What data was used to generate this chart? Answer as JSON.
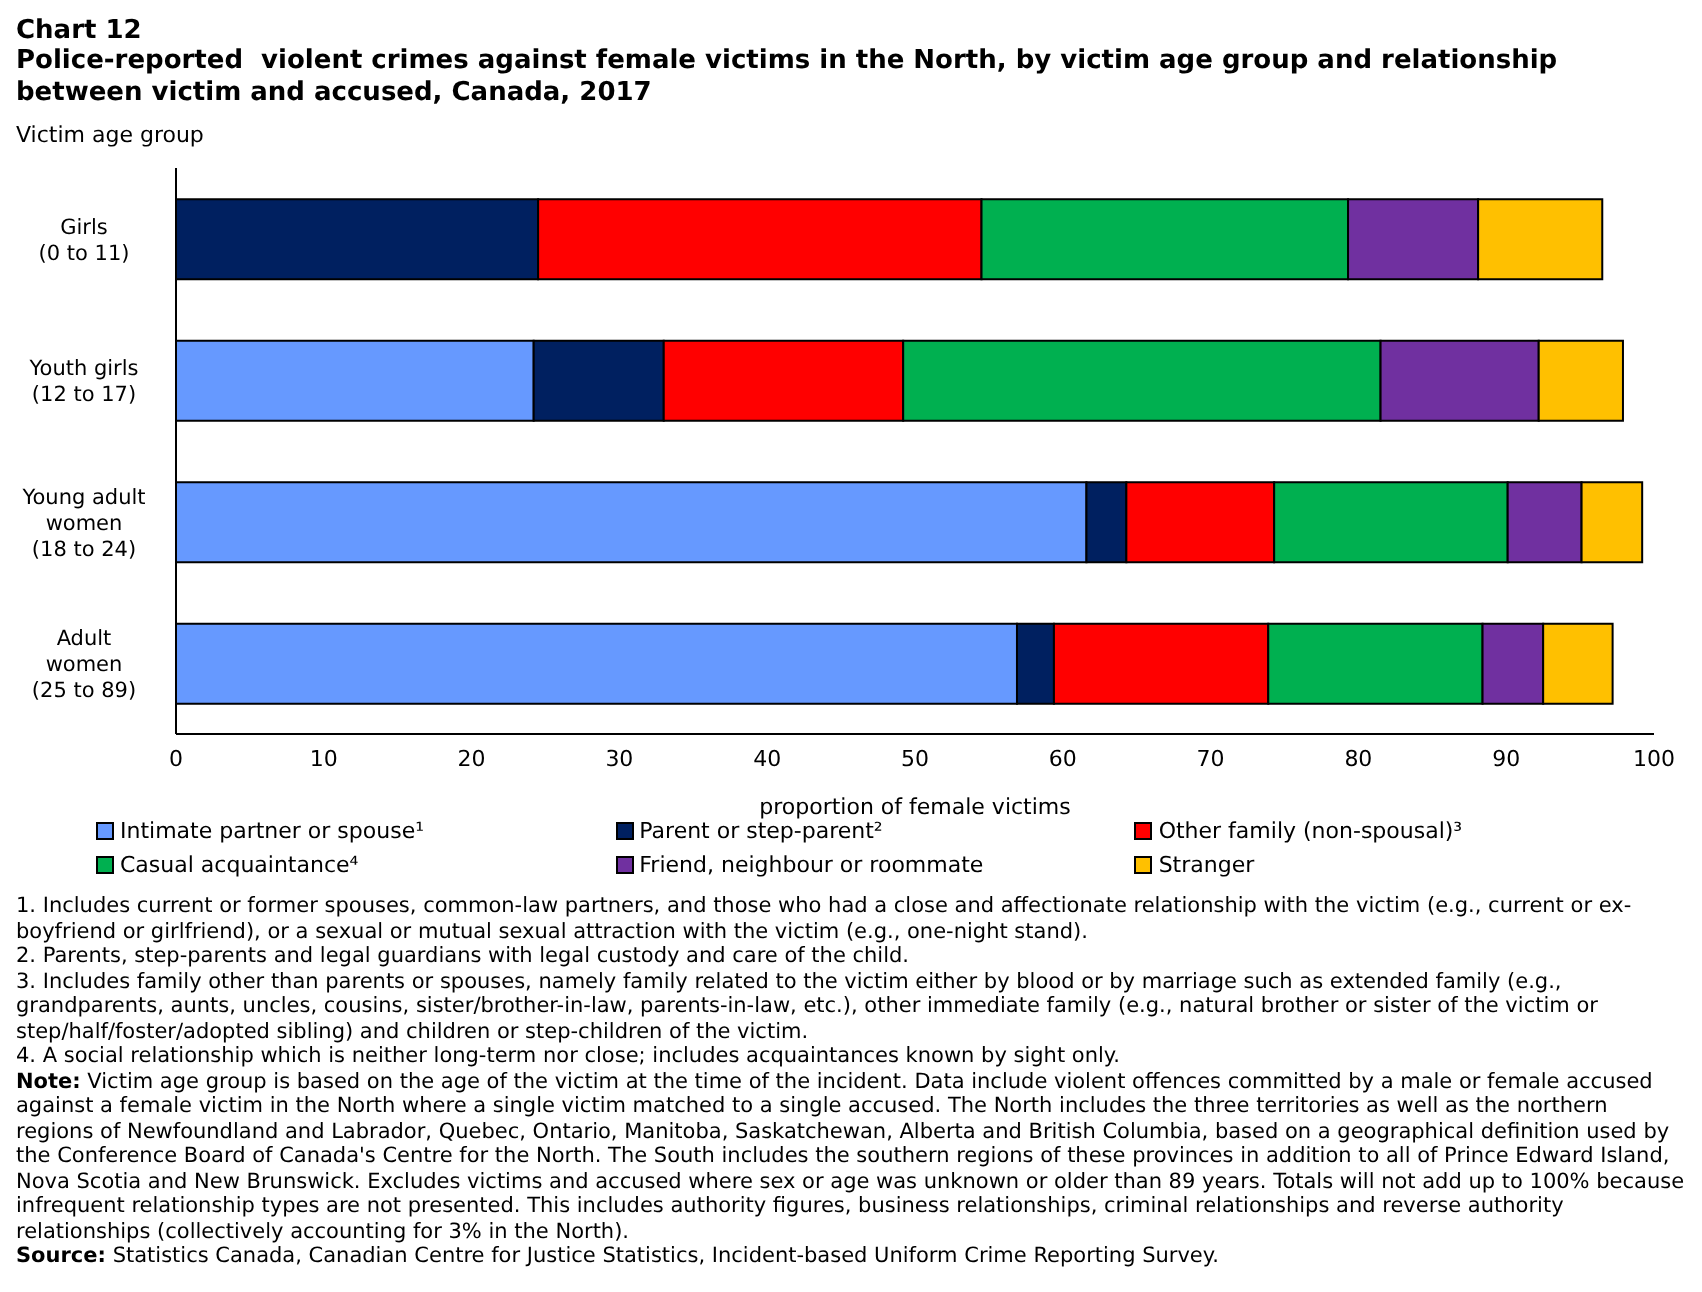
{
  "chart_data": {
    "type": "bar",
    "orientation": "horizontal",
    "stacked": true,
    "title": "Chart 12",
    "subtitle": "Police-reported  violent crimes against female victims in the North, by victim age group and relationship between victim and accused, Canada, 2017",
    "ylabel": "Victim age group",
    "xlabel": "proportion of female victims",
    "categories": [
      "Girls\n(0 to 11)",
      "Youth girls\n(12 to 17)",
      "Young adult\nwomen\n(18 to 24)",
      "Adult\nwomen\n(25 to 89)"
    ],
    "series": [
      {
        "name": "Intimate partner or spouse¹",
        "color": "#6699ff",
        "values": [
          0,
          24.2,
          61.6,
          56.9
        ]
      },
      {
        "name": "Parent or step-parent²",
        "color": "#002060",
        "values": [
          24.5,
          8.8,
          2.7,
          2.5
        ]
      },
      {
        "name": "Other family (non-spousal)³",
        "color": "#ff0000",
        "values": [
          30.0,
          16.2,
          10.0,
          14.5
        ]
      },
      {
        "name": "Casual acquaintance⁴",
        "color": "#00b050",
        "values": [
          24.8,
          32.3,
          15.8,
          14.5
        ]
      },
      {
        "name": "Friend, neighbour or roommate",
        "color": "#7030a0",
        "values": [
          8.8,
          10.7,
          5.0,
          4.1
        ]
      },
      {
        "name": "Stranger",
        "color": "#ffc000",
        "values": [
          8.4,
          5.7,
          4.1,
          4.7
        ]
      }
    ],
    "xlim": [
      0,
      100
    ],
    "xticks": [
      0,
      10,
      20,
      30,
      40,
      50,
      60,
      70,
      80,
      90,
      100
    ],
    "grid": false,
    "legend": "bottom",
    "annotations": [
      "1. Includes current or former spouses, common-law partners, and those who had a close and affectionate relationship with the victim (e.g., current or ex-boyfriend or girlfriend), or a sexual or mutual sexual attraction with the victim (e.g., one-night stand).",
      "2. Parents, step-parents and legal guardians with legal custody and care of the child.",
      "3. Includes family other than parents or spouses, namely family related to the victim either by blood or by marriage such as extended family (e.g., grandparents, aunts, uncles, cousins, sister/brother-in-law, parents-in-law, etc.), other immediate family (e.g., natural brother or sister of the victim or step/half/foster/adopted sibling) and children or step-children of the victim.",
      "4. A social relationship which is neither long-term nor close; includes acquaintances known by sight only.",
      "Note: Victim age group is based on the age of the victim at the time of the incident. Data include violent offences committed by a male or female accused against a female victim in the North where a single victim matched to a single accused. The North includes the three territories as well as the northern regions of Newfoundland and Labrador, Quebec, Ontario, Manitoba, Saskatchewan, Alberta and British Columbia, based on a geographical definition used by the Conference Board of Canada's Centre for the North. The South includes the southern regions of these provinces in addition to all of Prince Edward Island, Nova Scotia and New Brunswick. Excludes victims and accused where sex or age was unknown or older than 89 years. Totals will not add up to 100% because infrequent relationship types are not presented. This includes authority figures, business relationships, criminal relationships and reverse authority relationships (collectively accounting for 3% in the North).",
      "Source: Statistics Canada, Canadian Centre for Justice Statistics, Incident-based Uniform Crime Reporting Survey."
    ]
  }
}
